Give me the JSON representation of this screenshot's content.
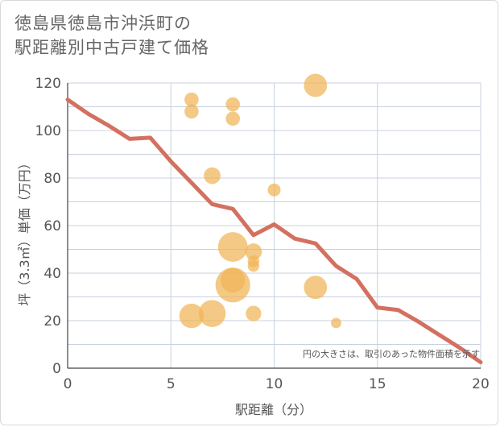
{
  "title_line1": "徳島県徳島市沖浜町の",
  "title_line2": "駅距離別中古戸建て価格",
  "chart_data": {
    "type": "scatter",
    "title": "徳島県徳島市沖浜町の駅距離別中古戸建て価格",
    "xlabel": "駅距離（分）",
    "ylabel": "坪（3.3㎡）単価（万円）",
    "xlim": [
      0,
      20
    ],
    "ylim": [
      0,
      120
    ],
    "x_ticks": [
      0,
      5,
      10,
      15,
      20
    ],
    "y_ticks": [
      0,
      20,
      40,
      60,
      80,
      100,
      120
    ],
    "grid": true,
    "note": "円の大きさは、取引のあった物件面積を示す",
    "colors": {
      "bubble": "#f0b456",
      "line": "#d47060",
      "grid": "#c9d1de"
    },
    "points": [
      {
        "x": 6,
        "y": 113,
        "size": 3
      },
      {
        "x": 6,
        "y": 108,
        "size": 3
      },
      {
        "x": 6,
        "y": 22,
        "size": 7
      },
      {
        "x": 7,
        "y": 81,
        "size": 4
      },
      {
        "x": 7,
        "y": 23,
        "size": 8
      },
      {
        "x": 8,
        "y": 111,
        "size": 3
      },
      {
        "x": 8,
        "y": 105,
        "size": 3
      },
      {
        "x": 8,
        "y": 51,
        "size": 9
      },
      {
        "x": 8,
        "y": 35,
        "size": 11
      },
      {
        "x": 8,
        "y": 37,
        "size": 7
      },
      {
        "x": 9,
        "y": 49,
        "size": 4
      },
      {
        "x": 9,
        "y": 45,
        "size": 2
      },
      {
        "x": 9,
        "y": 43,
        "size": 2
      },
      {
        "x": 9,
        "y": 23,
        "size": 3.5
      },
      {
        "x": 10,
        "y": 75,
        "size": 2.5
      },
      {
        "x": 12,
        "y": 119,
        "size": 6.5
      },
      {
        "x": 12,
        "y": 34,
        "size": 6.5
      },
      {
        "x": 13,
        "y": 19,
        "size": 1.5
      }
    ],
    "trend": {
      "x": [
        0,
        1,
        2,
        3,
        4,
        5,
        6,
        7,
        8,
        9,
        10,
        11,
        12,
        13,
        14,
        15,
        16,
        17,
        18,
        19,
        20
      ],
      "y": [
        113,
        107,
        102,
        96.5,
        97,
        87,
        78,
        69,
        67,
        56,
        60.5,
        54.5,
        52.5,
        43,
        37.5,
        25.5,
        24.5,
        19.5,
        14,
        8.5,
        2.5
      ]
    }
  }
}
